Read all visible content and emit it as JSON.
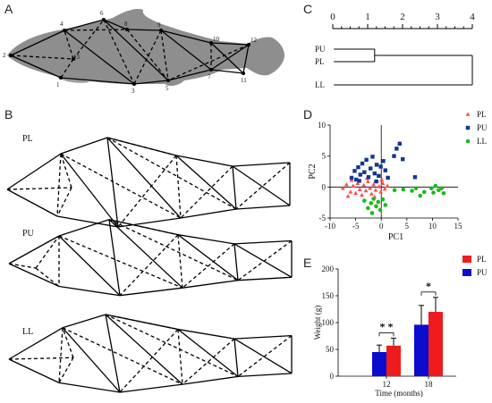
{
  "panels": {
    "A": "A",
    "B": "B",
    "C": "C",
    "D": "D",
    "E": "E"
  },
  "panel_a": {
    "landmarks": [
      "1",
      "2",
      "3",
      "4",
      "5",
      "6",
      "7",
      "8",
      "9",
      "10",
      "11",
      "12",
      "13"
    ]
  },
  "panel_b": {
    "groups": [
      "PL",
      "PU",
      "LL"
    ]
  },
  "fill_color": "#8e8e8e",
  "chart_data": [
    {
      "type": "dendrogram",
      "panel": "C",
      "axis_ticks": [
        "0",
        "1",
        "2",
        "3",
        "4"
      ],
      "xlim": [
        0,
        4
      ],
      "leaves": [
        "PU",
        "PL",
        "LL"
      ],
      "merges": [
        {
          "members": [
            "PU",
            "PL"
          ],
          "distance": 1.2
        },
        {
          "members": [
            "PU-PL",
            "LL"
          ],
          "distance": 4.0
        }
      ]
    },
    {
      "type": "scatter",
      "panel": "D",
      "xlabel": "PC1",
      "ylabel": "PC2",
      "xlim": [
        -10,
        15
      ],
      "ylim": [
        -5,
        10
      ],
      "xticks": [
        "-10",
        "-5",
        "0",
        "5",
        "10",
        "15"
      ],
      "yticks": [
        "-5",
        "0",
        "5",
        "10"
      ],
      "legend_position": "top-right",
      "series": [
        {
          "name": "PL",
          "marker": "triangle",
          "color": "#ff4b4b",
          "points": [
            [
              -7.5,
              -0.2
            ],
            [
              -6.8,
              0.4
            ],
            [
              -6.0,
              -0.8
            ],
            [
              -5.5,
              0.2
            ],
            [
              -5.0,
              -1.0
            ],
            [
              -4.6,
              0.6
            ],
            [
              -4.2,
              -0.4
            ],
            [
              -3.8,
              -1.3
            ],
            [
              -3.4,
              0.3
            ],
            [
              -3.0,
              -0.6
            ],
            [
              -2.6,
              0.9
            ],
            [
              -2.2,
              -0.2
            ],
            [
              -1.9,
              -1.1
            ],
            [
              -1.5,
              0.4
            ],
            [
              -1.1,
              -0.5
            ],
            [
              -0.8,
              1.0
            ],
            [
              -0.4,
              0.1
            ],
            [
              -0.1,
              -0.8
            ],
            [
              0.3,
              0.6
            ],
            [
              0.7,
              -0.3
            ],
            [
              1.2,
              0.2
            ],
            [
              -5.8,
              1.1
            ],
            [
              -2.8,
              1.4
            ],
            [
              0.1,
              1.2
            ],
            [
              -6.5,
              -1.5
            ],
            [
              -1.3,
              -1.6
            ]
          ]
        },
        {
          "name": "PU",
          "marker": "square",
          "color": "#13378e",
          "points": [
            [
              -5.8,
              1.5
            ],
            [
              -5.2,
              2.6
            ],
            [
              -4.9,
              1.2
            ],
            [
              -4.5,
              3.2
            ],
            [
              -4.1,
              2.0
            ],
            [
              -3.7,
              3.8
            ],
            [
              -3.3,
              2.4
            ],
            [
              -2.9,
              4.4
            ],
            [
              -2.5,
              1.6
            ],
            [
              -2.1,
              3.0
            ],
            [
              -1.7,
              4.9
            ],
            [
              -1.3,
              2.2
            ],
            [
              -0.9,
              3.6
            ],
            [
              -0.5,
              1.8
            ],
            [
              -0.1,
              3.3
            ],
            [
              0.4,
              4.2
            ],
            [
              0.8,
              2.7
            ],
            [
              1.3,
              1.5
            ],
            [
              2.5,
              5.0
            ],
            [
              3.0,
              6.2
            ],
            [
              3.6,
              7.0
            ],
            [
              4.2,
              4.5
            ],
            [
              -4.3,
              1.0
            ],
            [
              -1.0,
              0.9
            ],
            [
              6.6,
              1.6
            ]
          ]
        },
        {
          "name": "LL",
          "marker": "circle",
          "color": "#1fb71f",
          "points": [
            [
              -3.3,
              -2.2
            ],
            [
              -2.6,
              -3.4
            ],
            [
              -2.0,
              -2.6
            ],
            [
              -1.5,
              -1.9
            ],
            [
              -1.0,
              -3.1
            ],
            [
              -0.6,
              -2.4
            ],
            [
              -0.2,
              -3.7
            ],
            [
              0.3,
              -2.0
            ],
            [
              0.8,
              -2.9
            ],
            [
              -1.8,
              -4.2
            ],
            [
              2.6,
              -0.5
            ],
            [
              4.3,
              -0.4
            ],
            [
              6.0,
              -0.6
            ],
            [
              6.8,
              -0.2
            ],
            [
              7.6,
              -1.4
            ],
            [
              9.8,
              -0.2
            ],
            [
              10.2,
              -0.9
            ],
            [
              10.6,
              0.2
            ],
            [
              11.2,
              -0.5
            ],
            [
              11.8,
              -0.2
            ],
            [
              12.2,
              -1.0
            ],
            [
              8.4,
              -0.8
            ]
          ]
        }
      ]
    },
    {
      "type": "bar",
      "panel": "E",
      "categories": [
        "12",
        "18"
      ],
      "xlabel": "Time (months)",
      "ylabel": "Weight (g)",
      "ylim": [
        0,
        200
      ],
      "yticks": [
        "0",
        "50",
        "100",
        "150",
        "200"
      ],
      "legend_position": "top-right",
      "series": [
        {
          "name": "PL",
          "color": "#ee1c1c",
          "values": [
            57,
            120
          ],
          "errors": [
            14,
            27
          ]
        },
        {
          "name": "PU",
          "color": "#0c0cce",
          "values": [
            45,
            96
          ],
          "errors": [
            13,
            36
          ]
        }
      ],
      "significance": [
        "* *",
        "*"
      ]
    }
  ]
}
